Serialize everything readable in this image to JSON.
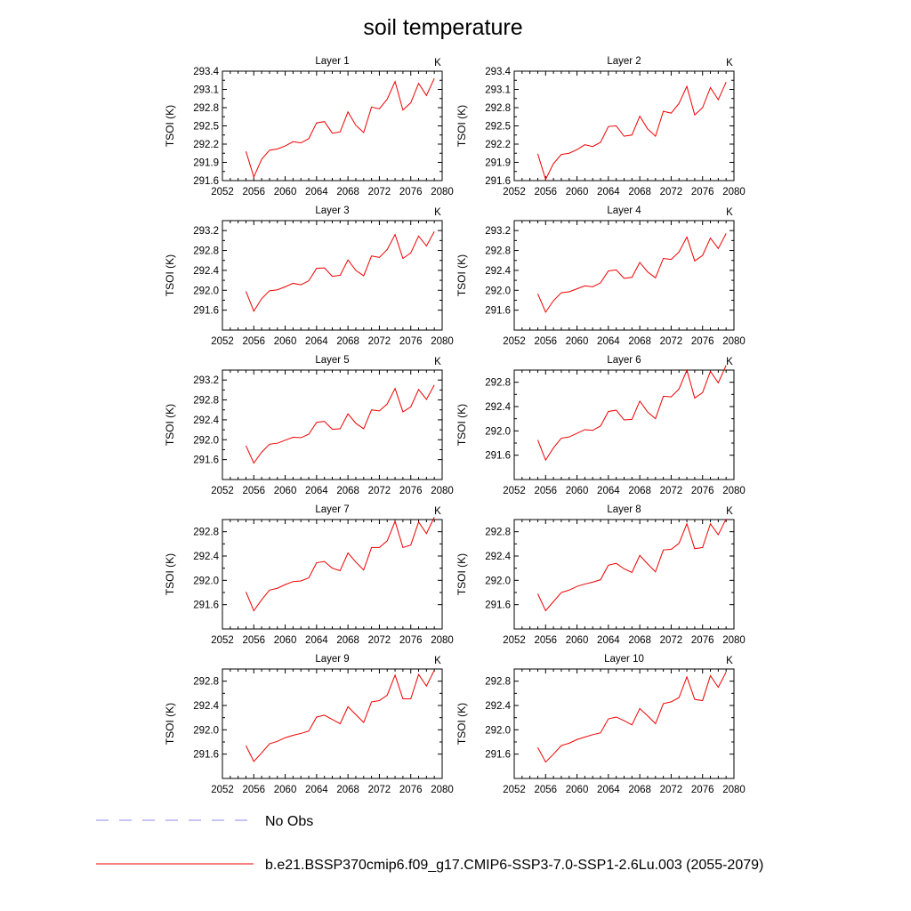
{
  "figure": {
    "title": "soil temperature"
  },
  "legend": [
    {
      "label": "No Obs",
      "color": "#8888ee",
      "style": "dashed"
    },
    {
      "label": "b.e21.BSSP370cmip6.f09_g17.CMIP6-SSP3-7.0-SSP1-2.6Lu.003 (2055-2079)",
      "color": "#ee0000",
      "style": "solid"
    }
  ],
  "chart_data": [
    {
      "type": "line",
      "title": "Layer 1",
      "units_label": "K",
      "ylabel": "TSOI  (K)",
      "xlim": [
        2052,
        2080
      ],
      "xticks": [
        2052,
        2056,
        2060,
        2064,
        2068,
        2072,
        2076,
        2080
      ],
      "ylim": [
        291.6,
        293.4
      ],
      "yticks": [
        "291.6",
        "291.9",
        "292.2",
        "292.5",
        "292.8",
        "293.1",
        "293.4"
      ],
      "x": [
        2055,
        2056,
        2057,
        2058,
        2059,
        2060,
        2061,
        2062,
        2063,
        2064,
        2065,
        2066,
        2067,
        2068,
        2069,
        2070,
        2071,
        2072,
        2073,
        2074,
        2075,
        2076,
        2077,
        2078,
        2079
      ],
      "series": [
        {
          "color": "#ee0000",
          "values": [
            292.08,
            291.66,
            291.95,
            292.1,
            292.12,
            292.17,
            292.24,
            292.22,
            292.29,
            292.55,
            292.57,
            292.38,
            292.4,
            292.73,
            292.51,
            292.39,
            292.81,
            292.78,
            292.94,
            293.23,
            292.76,
            292.88,
            293.2,
            293.0,
            293.28
          ]
        }
      ]
    },
    {
      "type": "line",
      "title": "Layer 2",
      "units_label": "K",
      "ylabel": "TSOI  (K)",
      "xlim": [
        2052,
        2080
      ],
      "xticks": [
        2052,
        2056,
        2060,
        2064,
        2068,
        2072,
        2076,
        2080
      ],
      "ylim": [
        291.6,
        293.4
      ],
      "yticks": [
        "291.6",
        "291.9",
        "292.2",
        "292.5",
        "292.8",
        "293.1",
        "293.4"
      ],
      "x": [
        2055,
        2056,
        2057,
        2058,
        2059,
        2060,
        2061,
        2062,
        2063,
        2064,
        2065,
        2066,
        2067,
        2068,
        2069,
        2070,
        2071,
        2072,
        2073,
        2074,
        2075,
        2076,
        2077,
        2078,
        2079
      ],
      "series": [
        {
          "color": "#ee0000",
          "values": [
            292.04,
            291.62,
            291.88,
            292.03,
            292.05,
            292.11,
            292.19,
            292.16,
            292.23,
            292.49,
            292.5,
            292.33,
            292.35,
            292.66,
            292.45,
            292.33,
            292.74,
            292.71,
            292.87,
            293.15,
            292.68,
            292.8,
            293.13,
            292.93,
            293.22
          ]
        }
      ]
    },
    {
      "type": "line",
      "title": "Layer 3",
      "units_label": "K",
      "ylabel": "TSOI  (K)",
      "xlim": [
        2052,
        2080
      ],
      "xticks": [
        2052,
        2056,
        2060,
        2064,
        2068,
        2072,
        2076,
        2080
      ],
      "ylim": [
        291.2,
        293.4
      ],
      "yticks": [
        "291.6",
        "292.0",
        "292.4",
        "292.8",
        "293.2"
      ],
      "x": [
        2055,
        2056,
        2057,
        2058,
        2059,
        2060,
        2061,
        2062,
        2063,
        2064,
        2065,
        2066,
        2067,
        2068,
        2069,
        2070,
        2071,
        2072,
        2073,
        2074,
        2075,
        2076,
        2077,
        2078,
        2079
      ],
      "series": [
        {
          "color": "#ee0000",
          "values": [
            291.98,
            291.58,
            291.83,
            291.99,
            292.01,
            292.07,
            292.14,
            292.11,
            292.19,
            292.44,
            292.45,
            292.28,
            292.3,
            292.61,
            292.4,
            292.29,
            292.69,
            292.66,
            292.82,
            293.12,
            292.64,
            292.75,
            293.09,
            292.89,
            293.18
          ]
        }
      ]
    },
    {
      "type": "line",
      "title": "Layer 4",
      "units_label": "K",
      "ylabel": "TSOI  (K)",
      "xlim": [
        2052,
        2080
      ],
      "xticks": [
        2052,
        2056,
        2060,
        2064,
        2068,
        2072,
        2076,
        2080
      ],
      "ylim": [
        291.2,
        293.4
      ],
      "yticks": [
        "291.6",
        "292.0",
        "292.4",
        "292.8",
        "293.2"
      ],
      "x": [
        2055,
        2056,
        2057,
        2058,
        2059,
        2060,
        2061,
        2062,
        2063,
        2064,
        2065,
        2066,
        2067,
        2068,
        2069,
        2070,
        2071,
        2072,
        2073,
        2074,
        2075,
        2076,
        2077,
        2078,
        2079
      ],
      "series": [
        {
          "color": "#ee0000",
          "values": [
            291.93,
            291.56,
            291.79,
            291.95,
            291.97,
            292.03,
            292.09,
            292.07,
            292.15,
            292.39,
            292.41,
            292.24,
            292.26,
            292.56,
            292.37,
            292.25,
            292.64,
            292.62,
            292.77,
            293.07,
            292.59,
            292.7,
            293.05,
            292.84,
            293.14
          ]
        }
      ]
    },
    {
      "type": "line",
      "title": "Layer 5",
      "units_label": "K",
      "ylabel": "TSOI  (K)",
      "xlim": [
        2052,
        2080
      ],
      "xticks": [
        2052,
        2056,
        2060,
        2064,
        2068,
        2072,
        2076,
        2080
      ],
      "ylim": [
        291.2,
        293.4
      ],
      "yticks": [
        "291.6",
        "292.0",
        "292.4",
        "292.8",
        "293.2"
      ],
      "x": [
        2055,
        2056,
        2057,
        2058,
        2059,
        2060,
        2061,
        2062,
        2063,
        2064,
        2065,
        2066,
        2067,
        2068,
        2069,
        2070,
        2071,
        2072,
        2073,
        2074,
        2075,
        2076,
        2077,
        2078,
        2079
      ],
      "series": [
        {
          "color": "#ee0000",
          "values": [
            291.88,
            291.53,
            291.75,
            291.91,
            291.93,
            291.99,
            292.05,
            292.04,
            292.11,
            292.35,
            292.37,
            292.21,
            292.22,
            292.52,
            292.33,
            292.22,
            292.6,
            292.58,
            292.72,
            293.03,
            292.56,
            292.66,
            293.01,
            292.81,
            293.1
          ]
        }
      ]
    },
    {
      "type": "line",
      "title": "Layer 6",
      "units_label": "K",
      "ylabel": "TSOI  (K)",
      "xlim": [
        2052,
        2080
      ],
      "xticks": [
        2052,
        2056,
        2060,
        2064,
        2068,
        2072,
        2076,
        2080
      ],
      "ylim": [
        291.2,
        293.0
      ],
      "yticks": [
        "291.6",
        "292.0",
        "292.4",
        "292.8"
      ],
      "x": [
        2055,
        2056,
        2057,
        2058,
        2059,
        2060,
        2061,
        2062,
        2063,
        2064,
        2065,
        2066,
        2067,
        2068,
        2069,
        2070,
        2071,
        2072,
        2073,
        2074,
        2075,
        2076,
        2077,
        2078,
        2079
      ],
      "series": [
        {
          "color": "#ee0000",
          "values": [
            291.85,
            291.52,
            291.72,
            291.88,
            291.9,
            291.96,
            292.02,
            292.01,
            292.08,
            292.32,
            292.34,
            292.18,
            292.19,
            292.49,
            292.31,
            292.2,
            292.57,
            292.56,
            292.69,
            293.0,
            292.54,
            292.63,
            292.98,
            292.79,
            293.08
          ]
        }
      ]
    },
    {
      "type": "line",
      "title": "Layer 7",
      "units_label": "K",
      "ylabel": "TSOI  (K)",
      "xlim": [
        2052,
        2080
      ],
      "xticks": [
        2052,
        2056,
        2060,
        2064,
        2068,
        2072,
        2076,
        2080
      ],
      "ylim": [
        291.2,
        293.0
      ],
      "yticks": [
        "291.6",
        "292.0",
        "292.4",
        "292.8"
      ],
      "x": [
        2055,
        2056,
        2057,
        2058,
        2059,
        2060,
        2061,
        2062,
        2063,
        2064,
        2065,
        2066,
        2067,
        2068,
        2069,
        2070,
        2071,
        2072,
        2073,
        2074,
        2075,
        2076,
        2077,
        2078,
        2079
      ],
      "series": [
        {
          "color": "#ee0000",
          "values": [
            291.81,
            291.5,
            291.68,
            291.84,
            291.87,
            291.93,
            291.98,
            291.99,
            292.04,
            292.29,
            292.31,
            292.2,
            292.16,
            292.45,
            292.3,
            292.17,
            292.54,
            292.54,
            292.65,
            292.97,
            292.54,
            292.58,
            292.96,
            292.77,
            293.04
          ]
        }
      ]
    },
    {
      "type": "line",
      "title": "Layer 8",
      "units_label": "K",
      "ylabel": "TSOI  (K)",
      "xlim": [
        2052,
        2080
      ],
      "xticks": [
        2052,
        2056,
        2060,
        2064,
        2068,
        2072,
        2076,
        2080
      ],
      "ylim": [
        291.2,
        293.0
      ],
      "yticks": [
        "291.6",
        "292.0",
        "292.4",
        "292.8"
      ],
      "x": [
        2055,
        2056,
        2057,
        2058,
        2059,
        2060,
        2061,
        2062,
        2063,
        2064,
        2065,
        2066,
        2067,
        2068,
        2069,
        2070,
        2071,
        2072,
        2073,
        2074,
        2075,
        2076,
        2077,
        2078,
        2079
      ],
      "series": [
        {
          "color": "#ee0000",
          "values": [
            291.78,
            291.5,
            291.65,
            291.8,
            291.84,
            291.9,
            291.94,
            291.97,
            292.01,
            292.25,
            292.28,
            292.19,
            292.13,
            292.41,
            292.27,
            292.14,
            292.5,
            292.51,
            292.61,
            292.93,
            292.52,
            292.54,
            292.93,
            292.75,
            293.01
          ]
        }
      ]
    },
    {
      "type": "line",
      "title": "Layer 9",
      "units_label": "K",
      "ylabel": "TSOI  (K)",
      "xlim": [
        2052,
        2080
      ],
      "xticks": [
        2052,
        2056,
        2060,
        2064,
        2068,
        2072,
        2076,
        2080
      ],
      "ylim": [
        291.2,
        293.0
      ],
      "yticks": [
        "291.6",
        "292.0",
        "292.4",
        "292.8"
      ],
      "x": [
        2055,
        2056,
        2057,
        2058,
        2059,
        2060,
        2061,
        2062,
        2063,
        2064,
        2065,
        2066,
        2067,
        2068,
        2069,
        2070,
        2071,
        2072,
        2073,
        2074,
        2075,
        2076,
        2077,
        2078,
        2079
      ],
      "series": [
        {
          "color": "#ee0000",
          "values": [
            291.74,
            291.48,
            291.62,
            291.77,
            291.81,
            291.87,
            291.91,
            291.94,
            291.98,
            292.21,
            292.24,
            292.17,
            292.1,
            292.38,
            292.25,
            292.12,
            292.46,
            292.48,
            292.57,
            292.9,
            292.51,
            292.51,
            292.91,
            292.72,
            292.98
          ]
        }
      ]
    },
    {
      "type": "line",
      "title": "Layer 10",
      "units_label": "K",
      "ylabel": "TSOI  (K)",
      "xlim": [
        2052,
        2080
      ],
      "xticks": [
        2052,
        2056,
        2060,
        2064,
        2068,
        2072,
        2076,
        2080
      ],
      "ylim": [
        291.2,
        293.0
      ],
      "yticks": [
        "291.6",
        "292.0",
        "292.4",
        "292.8"
      ],
      "x": [
        2055,
        2056,
        2057,
        2058,
        2059,
        2060,
        2061,
        2062,
        2063,
        2064,
        2065,
        2066,
        2067,
        2068,
        2069,
        2070,
        2071,
        2072,
        2073,
        2074,
        2075,
        2076,
        2077,
        2078,
        2079
      ],
      "series": [
        {
          "color": "#ee0000",
          "values": [
            291.71,
            291.47,
            291.6,
            291.74,
            291.78,
            291.84,
            291.88,
            291.92,
            291.95,
            292.18,
            292.21,
            292.15,
            292.08,
            292.35,
            292.23,
            292.1,
            292.43,
            292.46,
            292.53,
            292.87,
            292.5,
            292.48,
            292.89,
            292.7,
            292.95
          ]
        }
      ]
    }
  ]
}
